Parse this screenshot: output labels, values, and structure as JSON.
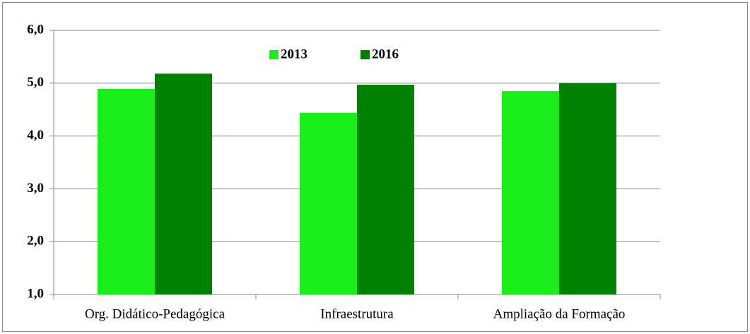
{
  "chart_data": {
    "type": "bar",
    "categories": [
      "Org. Didático-Pedagógica",
      "Infraestrutura",
      "Ampliação da Formação"
    ],
    "series": [
      {
        "name": "2013",
        "color": "#1aee1a",
        "values": [
          4.89,
          4.44,
          4.85
        ]
      },
      {
        "name": "2016",
        "color": "#008000",
        "values": [
          5.18,
          4.97,
          5.0
        ]
      }
    ],
    "ylim": [
      1,
      6
    ],
    "yticks": [
      {
        "value": 1,
        "label": "1,0"
      },
      {
        "value": 2,
        "label": "2,0"
      },
      {
        "value": 3,
        "label": "3,0"
      },
      {
        "value": 4,
        "label": "4,0"
      },
      {
        "value": 5,
        "label": "5,0"
      },
      {
        "value": 6,
        "label": "6,0"
      }
    ],
    "grid": true,
    "legend": "top"
  }
}
